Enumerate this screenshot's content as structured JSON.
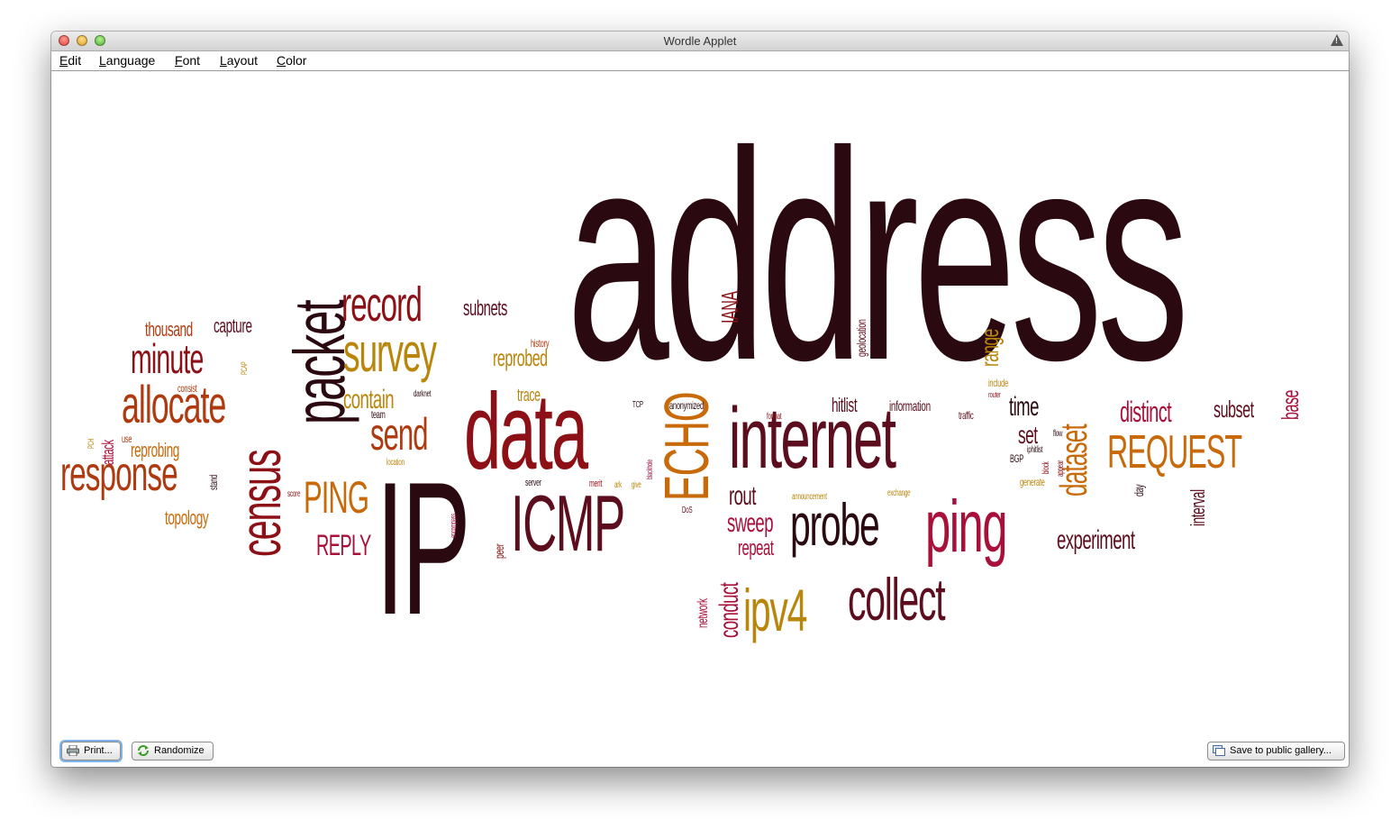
{
  "window": {
    "title": "Wordle Applet"
  },
  "menu": [
    "Edit",
    "Language",
    "Font",
    "Layout",
    "Color"
  ],
  "buttons": {
    "print": "Print...",
    "randomize": "Randomize",
    "save": "Save to public gallery..."
  },
  "palette": {
    "dark": "#2a0a10",
    "maroon": "#5c0e1e",
    "red": "#8c1016",
    "rust": "#b03a10",
    "orange": "#c86a0a",
    "gold": "#b8860b",
    "crimson": "#a8103a"
  },
  "words": [
    {
      "text": "address",
      "c": "dark",
      "v": 0
    },
    {
      "text": "IP",
      "c": "dark",
      "v": 0
    },
    {
      "text": "data",
      "c": "red",
      "v": 0
    },
    {
      "text": "internet",
      "c": "maroon",
      "v": 0
    },
    {
      "text": "ping",
      "c": "crimson",
      "v": 0
    },
    {
      "text": "packet",
      "c": "dark",
      "v": 1
    },
    {
      "text": "census",
      "c": "red",
      "v": 1
    },
    {
      "text": "ICMP",
      "c": "maroon",
      "v": 0
    },
    {
      "text": "probe",
      "c": "dark",
      "v": 0
    },
    {
      "text": "collect",
      "c": "maroon",
      "v": 0
    },
    {
      "text": "ipv4",
      "c": "gold",
      "v": 0
    },
    {
      "text": "ECHO",
      "c": "orange",
      "v": 1
    },
    {
      "text": "survey",
      "c": "gold",
      "v": 0
    },
    {
      "text": "record",
      "c": "red",
      "v": 0
    },
    {
      "text": "allocate",
      "c": "rust",
      "v": 0
    },
    {
      "text": "response",
      "c": "rust",
      "v": 0
    },
    {
      "text": "minute",
      "c": "red",
      "v": 0
    },
    {
      "text": "send",
      "c": "rust",
      "v": 0
    },
    {
      "text": "PING",
      "c": "orange",
      "v": 0
    },
    {
      "text": "REQUEST",
      "c": "orange",
      "v": 0
    },
    {
      "text": "REPLY",
      "c": "crimson",
      "v": 0
    },
    {
      "text": "dataset",
      "c": "orange",
      "v": 1
    },
    {
      "text": "distinct",
      "c": "crimson",
      "v": 0
    },
    {
      "text": "experiment",
      "c": "maroon",
      "v": 0
    },
    {
      "text": "rout",
      "c": "maroon",
      "v": 0
    },
    {
      "text": "sweep",
      "c": "crimson",
      "v": 0
    },
    {
      "text": "repeat",
      "c": "crimson",
      "v": 0
    },
    {
      "text": "contain",
      "c": "gold",
      "v": 0
    },
    {
      "text": "reprobed",
      "c": "gold",
      "v": 0
    },
    {
      "text": "subnets",
      "c": "maroon",
      "v": 0
    },
    {
      "text": "capture",
      "c": "maroon",
      "v": 0
    },
    {
      "text": "thousand",
      "c": "rust",
      "v": 0
    },
    {
      "text": "reprobing",
      "c": "orange",
      "v": 0
    },
    {
      "text": "topology",
      "c": "orange",
      "v": 0
    },
    {
      "text": "time",
      "c": "dark",
      "v": 0
    },
    {
      "text": "set",
      "c": "maroon",
      "v": 0
    },
    {
      "text": "subset",
      "c": "maroon",
      "v": 0
    },
    {
      "text": "hitlist",
      "c": "maroon",
      "v": 0
    },
    {
      "text": "information",
      "c": "maroon",
      "v": 0
    },
    {
      "text": "trace",
      "c": "gold",
      "v": 0
    },
    {
      "text": "IANA",
      "c": "red",
      "v": 1
    },
    {
      "text": "range",
      "c": "gold",
      "v": 1
    },
    {
      "text": "base",
      "c": "crimson",
      "v": 1
    },
    {
      "text": "interval",
      "c": "maroon",
      "v": 1
    },
    {
      "text": "conduct",
      "c": "crimson",
      "v": 1
    },
    {
      "text": "network",
      "c": "crimson",
      "v": 1
    },
    {
      "text": "attack",
      "c": "crimson",
      "v": 1
    },
    {
      "text": "history",
      "c": "rust",
      "v": 0
    },
    {
      "text": "anonymized",
      "c": "dark",
      "v": 0
    },
    {
      "text": "traffic",
      "c": "maroon",
      "v": 0
    },
    {
      "text": "include",
      "c": "gold",
      "v": 0
    },
    {
      "text": "generate",
      "c": "gold",
      "v": 0
    },
    {
      "text": "iphitlist",
      "c": "dark",
      "v": 0
    },
    {
      "text": "day",
      "c": "dark",
      "v": 1
    },
    {
      "text": "team",
      "c": "dark",
      "v": 0
    },
    {
      "text": "darknet",
      "c": "dark",
      "v": 0
    },
    {
      "text": "consist",
      "c": "rust",
      "v": 0
    },
    {
      "text": "use",
      "c": "rust",
      "v": 0
    },
    {
      "text": "stand",
      "c": "dark",
      "v": 1
    },
    {
      "text": "peer",
      "c": "red",
      "v": 1
    },
    {
      "text": "merit",
      "c": "red",
      "v": 0
    },
    {
      "text": "server",
      "c": "dark",
      "v": 0
    },
    {
      "text": "score",
      "c": "red",
      "v": 0
    },
    {
      "text": "location",
      "c": "gold",
      "v": 0
    },
    {
      "text": "geolocation",
      "c": "maroon",
      "v": 1
    },
    {
      "text": "announcement",
      "c": "gold",
      "v": 0
    },
    {
      "text": "exchange",
      "c": "gold",
      "v": 0
    },
    {
      "text": "flow",
      "c": "dark",
      "v": 0
    },
    {
      "text": "BGP",
      "c": "dark",
      "v": 0
    },
    {
      "text": "block",
      "c": "red",
      "v": 1
    },
    {
      "text": "appear",
      "c": "red",
      "v": 1
    },
    {
      "text": "format",
      "c": "red",
      "v": 0
    },
    {
      "text": "router",
      "c": "red",
      "v": 0
    },
    {
      "text": "PCH",
      "c": "gold",
      "v": 1
    },
    {
      "text": "PCAP",
      "c": "gold",
      "v": 1
    },
    {
      "text": "TCP",
      "c": "dark",
      "v": 0
    },
    {
      "text": "DoS",
      "c": "maroon",
      "v": 0
    },
    {
      "text": "ark",
      "c": "gold",
      "v": 0
    },
    {
      "text": "give",
      "c": "gold",
      "v": 0
    },
    {
      "text": "blackhole",
      "c": "crimson",
      "v": 1
    },
    {
      "text": "encompass",
      "c": "crimson",
      "v": 1
    }
  ]
}
